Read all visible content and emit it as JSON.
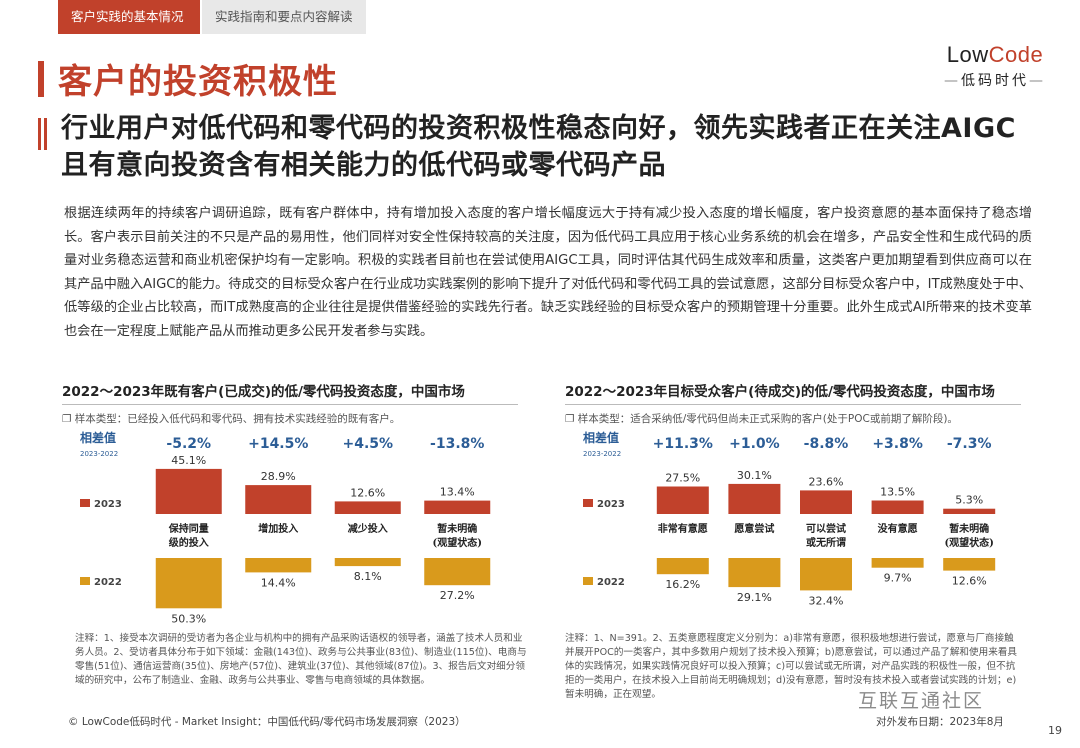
{
  "tabs": {
    "active": "客户实践的基本情况",
    "inactive": "实践指南和要点内容解读"
  },
  "logo": {
    "main_a": "Low",
    "main_b": "Code",
    "sub": "低码时代"
  },
  "page_title": "客户的投资积极性",
  "headline": "行业用户对低代码和零代码的投资积极性稳态向好，领先实践者正在关注AIGC且有意向投资含有相关能力的低代码或零代码产品",
  "body": "根据连续两年的持续客户调研追踪，既有客户群体中，持有增加投入态度的客户增长幅度远大于持有减少投入态度的增长幅度，客户投资意愿的基本面保持了稳态增长。客户表示目前关注的不只是产品的易用性，他们同样对安全性保持较高的关注度，因为低代码工具应用于核心业务系统的机会在增多，产品安全性和生成代码的质量对业务稳态运营和商业机密保护均有一定影响。积极的实践者目前也在尝试使用AIGC工具，同时评估其代码生成效率和质量，这类客户更加期望看到供应商可以在其产品中融入AIGC的能力。待成交的目标受众客户在行业成功实践案例的影响下提升了对低代码和零代码工具的尝试意愿，这部分目标受众客户中，IT成熟度处于中、低等级的企业占比较高，而IT成熟度高的企业往往是提供借鉴经验的实践先行者。缺乏实践经验的目标受众客户的预期管理十分重要。此外生成式AI所带来的技术变革也会在一定程度上赋能产品从而推动更多公民开发者参与实践。",
  "chart_data": [
    {
      "type": "bar",
      "title": "2022～2023年既有客户(已成交)的低/零代码投资态度，中国市场",
      "sample": "样本类型：已经投入低代码和零代码、拥有技术实践经验的既有客户。",
      "diff_label": "相差值",
      "diff_sub": "2023-2022",
      "categories": [
        "保持同量级的投入",
        "增加投入",
        "减少投入",
        "暂未明确(观望状态)"
      ],
      "category_lines": [
        [
          "保持同量",
          "级的投入"
        ],
        [
          "增加投入"
        ],
        [
          "减少投入"
        ],
        [
          "暂未明确",
          "(观望状态)"
        ]
      ],
      "diffs": [
        "-5.2%",
        "+14.5%",
        "+4.5%",
        "-13.8%"
      ],
      "series": [
        {
          "name": "2023",
          "values": [
            45.1,
            28.9,
            12.6,
            13.4
          ],
          "labels": [
            "45.1%",
            "28.9%",
            "12.6%",
            "13.4%"
          ]
        },
        {
          "name": "2022",
          "values": [
            50.3,
            14.4,
            8.1,
            27.2
          ],
          "labels": [
            "50.3%",
            "14.4%",
            "8.1%",
            "27.2%"
          ]
        }
      ],
      "colors": {
        "2023": "#c1412b",
        "2022": "#d99a1c",
        "diff": "#2c5d96"
      }
    },
    {
      "type": "bar",
      "title": "2022～2023年目标受众客户(待成交)的低/零代码投资态度，中国市场",
      "sample": "样本类型：适合采纳低/零代码但尚未正式采购的客户(处于POC或前期了解阶段)。",
      "diff_label": "相差值",
      "diff_sub": "2023-2022",
      "categories": [
        "非常有意愿",
        "愿意尝试",
        "可以尝试或无所谓",
        "没有意愿",
        "暂未明确(观望状态)"
      ],
      "category_lines": [
        [
          "非常有意愿"
        ],
        [
          "愿意尝试"
        ],
        [
          "可以尝试",
          "或无所谓"
        ],
        [
          "没有意愿"
        ],
        [
          "暂未明确",
          "(观望状态)"
        ]
      ],
      "diffs": [
        "+11.3%",
        "+1.0%",
        "-8.8%",
        "+3.8%",
        "-7.3%"
      ],
      "series": [
        {
          "name": "2023",
          "values": [
            27.5,
            30.1,
            23.6,
            13.5,
            5.3
          ],
          "labels": [
            "27.5%",
            "30.1%",
            "23.6%",
            "13.5%",
            "5.3%"
          ]
        },
        {
          "name": "2022",
          "values": [
            16.2,
            29.1,
            32.4,
            9.7,
            12.6
          ],
          "labels": [
            "16.2%",
            "29.1%",
            "32.4%",
            "9.7%",
            "12.6%"
          ]
        }
      ],
      "colors": {
        "2023": "#c1412b",
        "2022": "#d99a1c",
        "diff": "#2c5d96"
      }
    }
  ],
  "note_left": "注释：1、接受本次调研的受访者为各企业与机构中的拥有产品采购话语权的领导者，涵盖了技术人员和业务人员。2、受访者具体分布于如下领域：金融(143位)、政务与公共事业(83位)、制造业(115位)、电商与零售(51位)、通信运营商(35位)、房地产(57位)、建筑业(37位)、其他领域(87位)。3、报告后文对细分领域的研究中，公布了制造业、金融、政务与公共事业、零售与电商领域的具体数据。",
  "note_right": "注释：1、N=391。2、五类意愿程度定义分别为：a)非常有意愿，很积极地想进行尝试，愿意与厂商接触并展开POC的一类客户，其中多数用户规划了技术投入预算；b)愿意尝试，可以通过产品了解和使用来看具体的实践情况，如果实践情况良好可以投入预算；c)可以尝试或无所谓，对产品实践的积极性一般，但不抗拒的一类用户，在技术投入上目前尚无明确规划；d)没有意愿，暂时没有技术投入或者尝试实践的计划；e)暂未明确，正在观望。",
  "footer": "© LowCode低码时代 - Market Insight：中国低代码/零代码市场发展洞察（2023）",
  "footer_date": "对外发布日期：2023年8月",
  "watermark": "互联互通社区",
  "page_number": "19"
}
